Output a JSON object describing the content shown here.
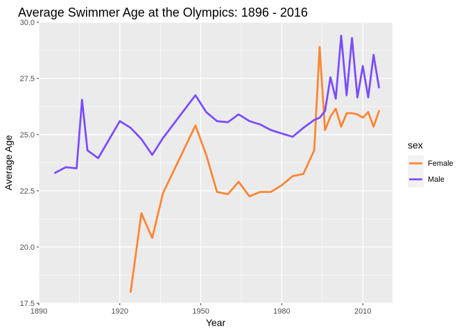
{
  "chart_data": {
    "type": "line",
    "title": "Average Swimmer Age at the Olympics: 1896 - 2016",
    "xlabel": "Year",
    "ylabel": "Average Age",
    "xlim": [
      1890,
      2021
    ],
    "ylim": [
      17.5,
      30.0
    ],
    "x_ticks": [
      1890,
      1920,
      1950,
      1980,
      2010
    ],
    "x_tick_labels": [
      "1890",
      "1920",
      "1950",
      "1980",
      "2010"
    ],
    "y_ticks": [
      17.5,
      20.0,
      22.5,
      25.0,
      27.5,
      30.0
    ],
    "y_tick_labels": [
      "17.5",
      "20.0",
      "22.5",
      "25.0",
      "27.5",
      "30.0"
    ],
    "grid": true,
    "legend": {
      "title": "sex",
      "position": "right"
    },
    "series": [
      {
        "name": "Female",
        "color": "#ff8533",
        "x": [
          1924,
          1928,
          1932,
          1936,
          1948,
          1952,
          1956,
          1960,
          1964,
          1968,
          1972,
          1976,
          1980,
          1984,
          1988,
          1992,
          1994,
          1996,
          1998,
          2000,
          2002,
          2004,
          2006,
          2008,
          2010,
          2012,
          2014,
          2016
        ],
        "y": [
          18.0,
          21.5,
          20.4,
          22.4,
          25.4,
          24.1,
          22.45,
          22.35,
          22.9,
          22.25,
          22.45,
          22.45,
          22.75,
          23.15,
          23.25,
          24.3,
          28.9,
          25.2,
          25.8,
          26.15,
          25.35,
          25.95,
          25.95,
          25.9,
          25.75,
          26.0,
          25.35,
          26.05
        ]
      },
      {
        "name": "Male",
        "color": "#7a4dff",
        "x": [
          1896,
          1900,
          1904,
          1906,
          1908,
          1912,
          1920,
          1924,
          1928,
          1932,
          1936,
          1948,
          1952,
          1956,
          1960,
          1964,
          1968,
          1972,
          1976,
          1980,
          1984,
          1988,
          1992,
          1994,
          1996,
          1998,
          2000,
          2002,
          2004,
          2006,
          2008,
          2010,
          2012,
          2014,
          2016
        ],
        "y": [
          23.3,
          23.55,
          23.5,
          26.55,
          24.3,
          23.95,
          25.6,
          25.3,
          24.8,
          24.1,
          24.85,
          26.75,
          26.0,
          25.6,
          25.55,
          25.9,
          25.6,
          25.45,
          25.2,
          25.05,
          24.9,
          25.3,
          25.65,
          25.75,
          26.05,
          27.55,
          26.6,
          29.4,
          26.75,
          29.3,
          26.65,
          28.05,
          26.65,
          28.55,
          27.1
        ]
      }
    ]
  }
}
